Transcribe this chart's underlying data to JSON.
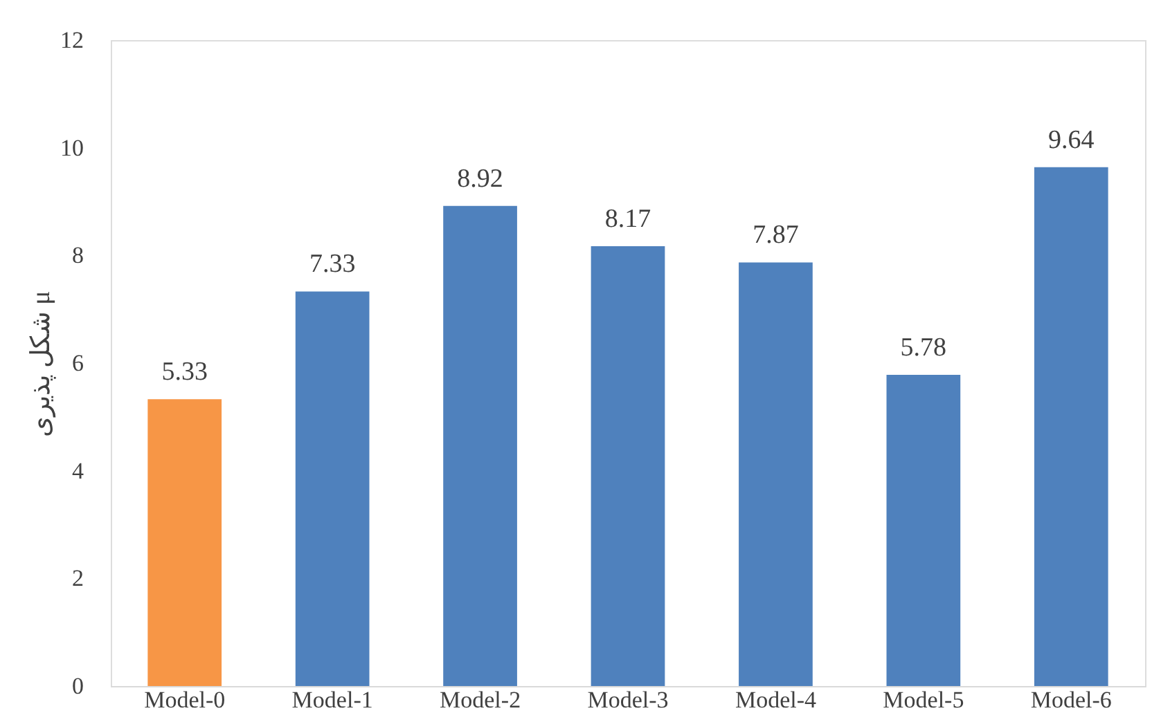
{
  "chart_data": {
    "type": "bar",
    "ylabel": "شکل پذیری μ",
    "categories": [
      "Model-0",
      "Model-1",
      "Model-2",
      "Model-3",
      "Model-4",
      "Model-5",
      "Model-6"
    ],
    "values": [
      5.33,
      7.33,
      8.92,
      8.17,
      7.87,
      5.78,
      9.64
    ],
    "colors": [
      "#f79646",
      "#4f81bd",
      "#4f81bd",
      "#4f81bd",
      "#4f81bd",
      "#4f81bd",
      "#4f81bd"
    ],
    "ylim": [
      0,
      12
    ],
    "yticks": [
      0,
      2,
      4,
      6,
      8,
      10,
      12
    ],
    "grid": false,
    "data_labels": true
  }
}
